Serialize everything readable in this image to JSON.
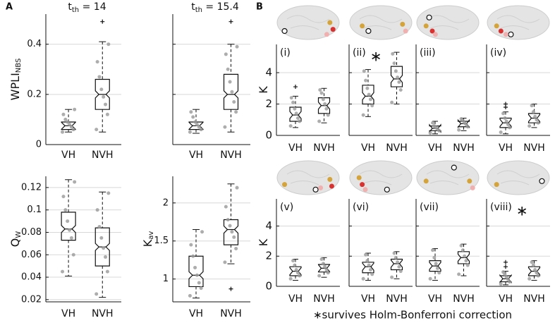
{
  "panel_labels": [
    "A",
    "B"
  ],
  "caption": "∗survives Holm-Bonferroni correction",
  "chart_data": [
    {
      "type": "box",
      "title": [
        "t",
        "th",
        " = 14"
      ],
      "ylabel": [
        "WPLI",
        "NBS"
      ],
      "categories": [
        "VH",
        "NVH"
      ],
      "ylim": [
        0,
        0.52
      ],
      "yticks": [
        0,
        0.2,
        0.4
      ],
      "tick_labels": true,
      "grid": true,
      "boxes": [
        {
          "low": 0.05,
          "q1": 0.06,
          "median": 0.075,
          "q3": 0.09,
          "high": 0.14,
          "outliers": [],
          "points": [
            0.05,
            0.06,
            0.07,
            0.08,
            0.09,
            0.1,
            0.12,
            0.14
          ]
        },
        {
          "low": 0.05,
          "q1": 0.14,
          "median": 0.2,
          "q3": 0.26,
          "high": 0.41,
          "outliers": [
            0.49
          ],
          "points": [
            0.06,
            0.12,
            0.16,
            0.19,
            0.22,
            0.27,
            0.33,
            0.4
          ]
        }
      ]
    },
    {
      "type": "box",
      "title": [
        "t",
        "th",
        " = 15.4"
      ],
      "categories": [
        "VH",
        "NVH"
      ],
      "ylim": [
        0,
        0.52
      ],
      "yticks": [
        0,
        0.2,
        0.4
      ],
      "tick_labels": false,
      "grid": true,
      "boxes": [
        {
          "low": 0.045,
          "q1": 0.06,
          "median": 0.075,
          "q3": 0.09,
          "high": 0.14,
          "outliers": [],
          "points": [
            0.05,
            0.06,
            0.07,
            0.08,
            0.09,
            0.11,
            0.13
          ]
        },
        {
          "low": 0.05,
          "q1": 0.14,
          "median": 0.2,
          "q3": 0.28,
          "high": 0.4,
          "outliers": [
            0.49
          ],
          "points": [
            0.07,
            0.13,
            0.17,
            0.21,
            0.25,
            0.3,
            0.36,
            0.39
          ]
        }
      ]
    },
    {
      "type": "box",
      "ylabel": [
        "Q",
        "W"
      ],
      "categories": [
        "VH",
        "NVH"
      ],
      "ylim": [
        0.018,
        0.13
      ],
      "yticks": [
        0.02,
        0.04,
        0.06,
        0.08,
        0.1,
        0.12
      ],
      "tick_labels": true,
      "grid": true,
      "boxes": [
        {
          "low": 0.041,
          "q1": 0.073,
          "median": 0.083,
          "q3": 0.098,
          "high": 0.127,
          "outliers": [],
          "points": [
            0.045,
            0.06,
            0.075,
            0.082,
            0.09,
            0.1,
            0.112,
            0.125
          ]
        },
        {
          "low": 0.022,
          "q1": 0.05,
          "median": 0.067,
          "q3": 0.084,
          "high": 0.116,
          "outliers": [],
          "points": [
            0.025,
            0.045,
            0.058,
            0.066,
            0.075,
            0.085,
            0.1,
            0.115
          ]
        }
      ]
    },
    {
      "type": "box",
      "ylabel": [
        "K",
        "av"
      ],
      "categories": [
        "VH",
        "NVH"
      ],
      "ylim": [
        0.7,
        2.35
      ],
      "yticks": [
        1,
        1.5,
        2
      ],
      "tick_labels": true,
      "grid": true,
      "boxes": [
        {
          "low": 0.75,
          "q1": 0.9,
          "median": 1.05,
          "q3": 1.3,
          "high": 1.65,
          "outliers": [],
          "points": [
            0.78,
            0.88,
            0.95,
            1.05,
            1.15,
            1.3,
            1.45,
            1.62
          ]
        },
        {
          "low": 1.2,
          "q1": 1.45,
          "median": 1.65,
          "q3": 1.78,
          "high": 2.25,
          "outliers": [
            0.87
          ],
          "points": [
            1.22,
            1.4,
            1.55,
            1.62,
            1.7,
            1.78,
            1.95,
            2.2
          ]
        }
      ]
    },
    {
      "type": "box",
      "label": "(i)",
      "ylabel": [
        "K"
      ],
      "categories": [
        "VH",
        "NVH"
      ],
      "ylim": [
        0,
        5.8
      ],
      "yticks": [
        0,
        2,
        4
      ],
      "tick_labels": true,
      "grid": true,
      "boxes": [
        {
          "low": 0.5,
          "q1": 0.9,
          "median": 1.3,
          "q3": 1.8,
          "high": 2.5,
          "outliers": [
            3.1
          ],
          "points": [
            0.6,
            0.9,
            1.1,
            1.4,
            1.7,
            2.1,
            2.4
          ]
        },
        {
          "low": 0.8,
          "q1": 1.4,
          "median": 1.9,
          "q3": 2.4,
          "high": 3.0,
          "outliers": [],
          "points": [
            0.9,
            1.3,
            1.7,
            2.0,
            2.3,
            2.7,
            2.9
          ]
        }
      ]
    },
    {
      "type": "box",
      "label": "(ii)",
      "star": "∗",
      "categories": [
        "VH",
        "NVH"
      ],
      "ylim": [
        0,
        5.8
      ],
      "yticks": [
        0,
        2,
        4
      ],
      "tick_labels": false,
      "grid": true,
      "boxes": [
        {
          "low": 1.2,
          "q1": 2.0,
          "median": 2.5,
          "q3": 3.2,
          "high": 4.2,
          "outliers": [],
          "points": [
            1.3,
            1.9,
            2.3,
            2.6,
            3.0,
            3.5,
            4.1
          ]
        },
        {
          "low": 2.0,
          "q1": 3.1,
          "median": 3.6,
          "q3": 4.4,
          "high": 5.3,
          "outliers": [],
          "points": [
            2.1,
            2.9,
            3.4,
            3.7,
            4.1,
            4.6,
            5.2
          ]
        }
      ]
    },
    {
      "type": "box",
      "label": "(iii)",
      "categories": [
        "VH",
        "NVH"
      ],
      "ylim": [
        0,
        5.8
      ],
      "yticks": [
        0,
        2,
        4
      ],
      "tick_labels": false,
      "grid": true,
      "boxes": [
        {
          "low": 0.1,
          "q1": 0.3,
          "median": 0.45,
          "q3": 0.6,
          "high": 0.9,
          "outliers": [],
          "points": [
            0.15,
            0.3,
            0.4,
            0.5,
            0.6,
            0.8
          ]
        },
        {
          "low": 0.3,
          "q1": 0.55,
          "median": 0.75,
          "q3": 0.9,
          "high": 1.1,
          "outliers": [],
          "points": [
            0.35,
            0.55,
            0.7,
            0.8,
            0.95,
            1.05
          ]
        }
      ]
    },
    {
      "type": "box",
      "label": "(iv)",
      "categories": [
        "VH",
        "NVH"
      ],
      "ylim": [
        0,
        5.8
      ],
      "yticks": [
        0,
        2,
        4
      ],
      "tick_labels": false,
      "grid": true,
      "boxes": [
        {
          "low": 0.1,
          "q1": 0.5,
          "median": 0.8,
          "q3": 1.1,
          "high": 1.5,
          "outliers": [
            1.8,
            2.0
          ],
          "points": [
            0.2,
            0.5,
            0.7,
            0.9,
            1.1,
            1.4
          ]
        },
        {
          "low": 0.5,
          "q1": 0.8,
          "median": 1.1,
          "q3": 1.4,
          "high": 2.0,
          "outliers": [],
          "points": [
            0.6,
            0.8,
            1.0,
            1.2,
            1.5,
            1.9
          ]
        }
      ]
    },
    {
      "type": "box",
      "label": "(v)",
      "ylabel": [
        "K"
      ],
      "categories": [
        "VH",
        "NVH"
      ],
      "ylim": [
        0,
        5.8
      ],
      "yticks": [
        0,
        2,
        4
      ],
      "tick_labels": true,
      "grid": true,
      "boxes": [
        {
          "low": 0.4,
          "q1": 0.7,
          "median": 1.0,
          "q3": 1.3,
          "high": 1.8,
          "outliers": [],
          "points": [
            0.5,
            0.7,
            0.9,
            1.1,
            1.4,
            1.7
          ]
        },
        {
          "low": 0.6,
          "q1": 0.95,
          "median": 1.2,
          "q3": 1.45,
          "high": 1.9,
          "outliers": [],
          "points": [
            0.7,
            0.9,
            1.1,
            1.3,
            1.5,
            1.8
          ]
        }
      ]
    },
    {
      "type": "box",
      "label": "(vi)",
      "categories": [
        "VH",
        "NVH"
      ],
      "ylim": [
        0,
        5.8
      ],
      "yticks": [
        0,
        2,
        4
      ],
      "tick_labels": false,
      "grid": true,
      "boxes": [
        {
          "low": 0.4,
          "q1": 0.9,
          "median": 1.3,
          "q3": 1.6,
          "high": 2.2,
          "outliers": [],
          "points": [
            0.5,
            0.8,
            1.1,
            1.4,
            1.7,
            2.1
          ]
        },
        {
          "low": 0.5,
          "q1": 1.1,
          "median": 1.5,
          "q3": 1.8,
          "high": 2.3,
          "outliers": [],
          "points": [
            0.6,
            1.0,
            1.3,
            1.6,
            1.9,
            2.2
          ]
        }
      ]
    },
    {
      "type": "box",
      "label": "(vii)",
      "categories": [
        "VH",
        "NVH"
      ],
      "ylim": [
        0,
        5.8
      ],
      "yticks": [
        0,
        2,
        4
      ],
      "tick_labels": false,
      "grid": true,
      "boxes": [
        {
          "low": 0.4,
          "q1": 1.0,
          "median": 1.35,
          "q3": 1.7,
          "high": 2.5,
          "outliers": [],
          "points": [
            0.5,
            0.9,
            1.2,
            1.5,
            1.9,
            2.4
          ]
        },
        {
          "low": 0.7,
          "q1": 1.5,
          "median": 1.9,
          "q3": 2.3,
          "high": 2.8,
          "outliers": [],
          "points": [
            0.8,
            1.4,
            1.7,
            2.0,
            2.4,
            2.7
          ]
        }
      ]
    },
    {
      "type": "box",
      "label": "(viii)",
      "star": "∗",
      "categories": [
        "VH",
        "NVH"
      ],
      "ylim": [
        0,
        5.8
      ],
      "yticks": [
        0,
        2,
        4
      ],
      "tick_labels": false,
      "grid": true,
      "boxes": [
        {
          "low": 0.1,
          "q1": 0.3,
          "median": 0.5,
          "q3": 0.7,
          "high": 1.0,
          "outliers": [
            1.3,
            1.6
          ],
          "points": [
            0.15,
            0.3,
            0.45,
            0.6,
            0.8,
            0.95
          ]
        },
        {
          "low": 0.4,
          "q1": 0.7,
          "median": 1.0,
          "q3": 1.3,
          "high": 1.7,
          "outliers": [],
          "points": [
            0.5,
            0.7,
            0.9,
            1.1,
            1.4,
            1.6
          ]
        }
      ]
    }
  ]
}
